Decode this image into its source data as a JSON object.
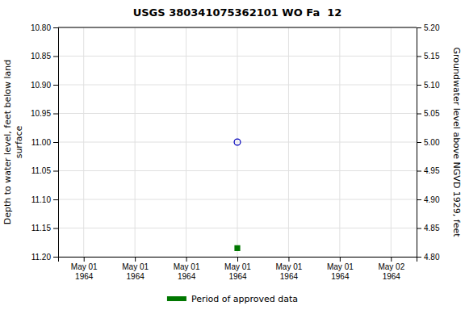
{
  "chart_data": {
    "type": "scatter",
    "title": "USGS 380341075362101 WO Fa  12",
    "y_label": "Depth to water level, feet below land\nsurface",
    "y2_label": "Groundwater level above NGVD 1929, feet",
    "categories": [
      "May 01\n1964",
      "May 01\n1964",
      "May 01\n1964",
      "May 01\n1964",
      "May 01\n1964",
      "May 01\n1964",
      "May 02\n1964"
    ],
    "series": [
      {
        "color": "#0000bb",
        "marker": "circle-open",
        "values": [
          null,
          null,
          null,
          11.0,
          null,
          null,
          null
        ]
      },
      {
        "name": "Period of approved data",
        "color": "#007700",
        "marker": "square",
        "values": [
          null,
          null,
          null,
          11.185,
          null,
          null,
          null
        ]
      }
    ],
    "ylim": [
      11.2,
      10.8
    ],
    "yticks": [
      {
        "value": 10.8,
        "label": "10.80"
      },
      10.85,
      {
        "value": 10.9,
        "label": "10.90"
      },
      10.95,
      {
        "value": 11.0,
        "label": "11.00"
      },
      11.05,
      {
        "value": 11.1,
        "label": "11.10"
      },
      11.15,
      {
        "value": 11.2,
        "label": "11.20"
      }
    ],
    "y2lim": [
      4.8,
      5.2
    ],
    "y2ticks": [
      {
        "value": 5.2,
        "label": "5.20"
      },
      5.15,
      {
        "value": 5.1,
        "label": "5.10"
      },
      5.05,
      {
        "value": 5.0,
        "label": "5.00"
      },
      4.95,
      {
        "value": 4.9,
        "label": "4.90"
      },
      4.85,
      {
        "value": 4.8,
        "label": "4.80"
      }
    ],
    "grid": true,
    "legend": "bottom"
  }
}
